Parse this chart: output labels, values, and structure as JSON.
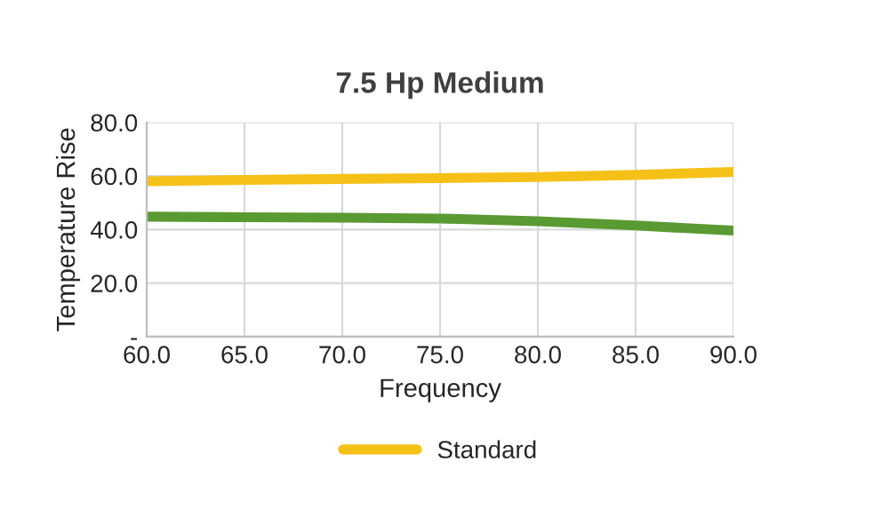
{
  "chart_data": {
    "type": "line",
    "title": "7.5 Hp Medium",
    "xlabel": "Frequency",
    "ylabel": "Temperature Rise",
    "x": [
      60,
      65,
      70,
      75,
      80,
      85,
      90
    ],
    "series": [
      {
        "color": "#5a9a32",
        "values": [
          44.8,
          44.6,
          44.4,
          44.1,
          43.1,
          41.5,
          39.6
        ]
      },
      {
        "name": "Standard",
        "color": "#f5c118",
        "values": [
          58.0,
          58.5,
          58.9,
          59.2,
          59.6,
          60.4,
          61.5
        ]
      }
    ],
    "xlim": [
      60,
      90
    ],
    "xticks": [
      {
        "value": 60,
        "label": "60.0"
      },
      {
        "value": 65,
        "label": "65.0"
      },
      {
        "value": 70,
        "label": "70.0"
      },
      {
        "value": 75,
        "label": "75.0"
      },
      {
        "value": 80,
        "label": "80.0"
      },
      {
        "value": 85,
        "label": "85.0"
      },
      {
        "value": 90,
        "label": "90.0"
      }
    ],
    "ylim": [
      0,
      80
    ],
    "yticks": [
      {
        "value": 0,
        "label": "-"
      },
      {
        "value": 20,
        "label": "20.0"
      },
      {
        "value": 40,
        "label": "40.0"
      },
      {
        "value": 60,
        "label": "60.0"
      },
      {
        "value": 80,
        "label": "80.0"
      }
    ],
    "grid": true,
    "legend": "bottom",
    "marker": "none",
    "line_style": "solid"
  }
}
